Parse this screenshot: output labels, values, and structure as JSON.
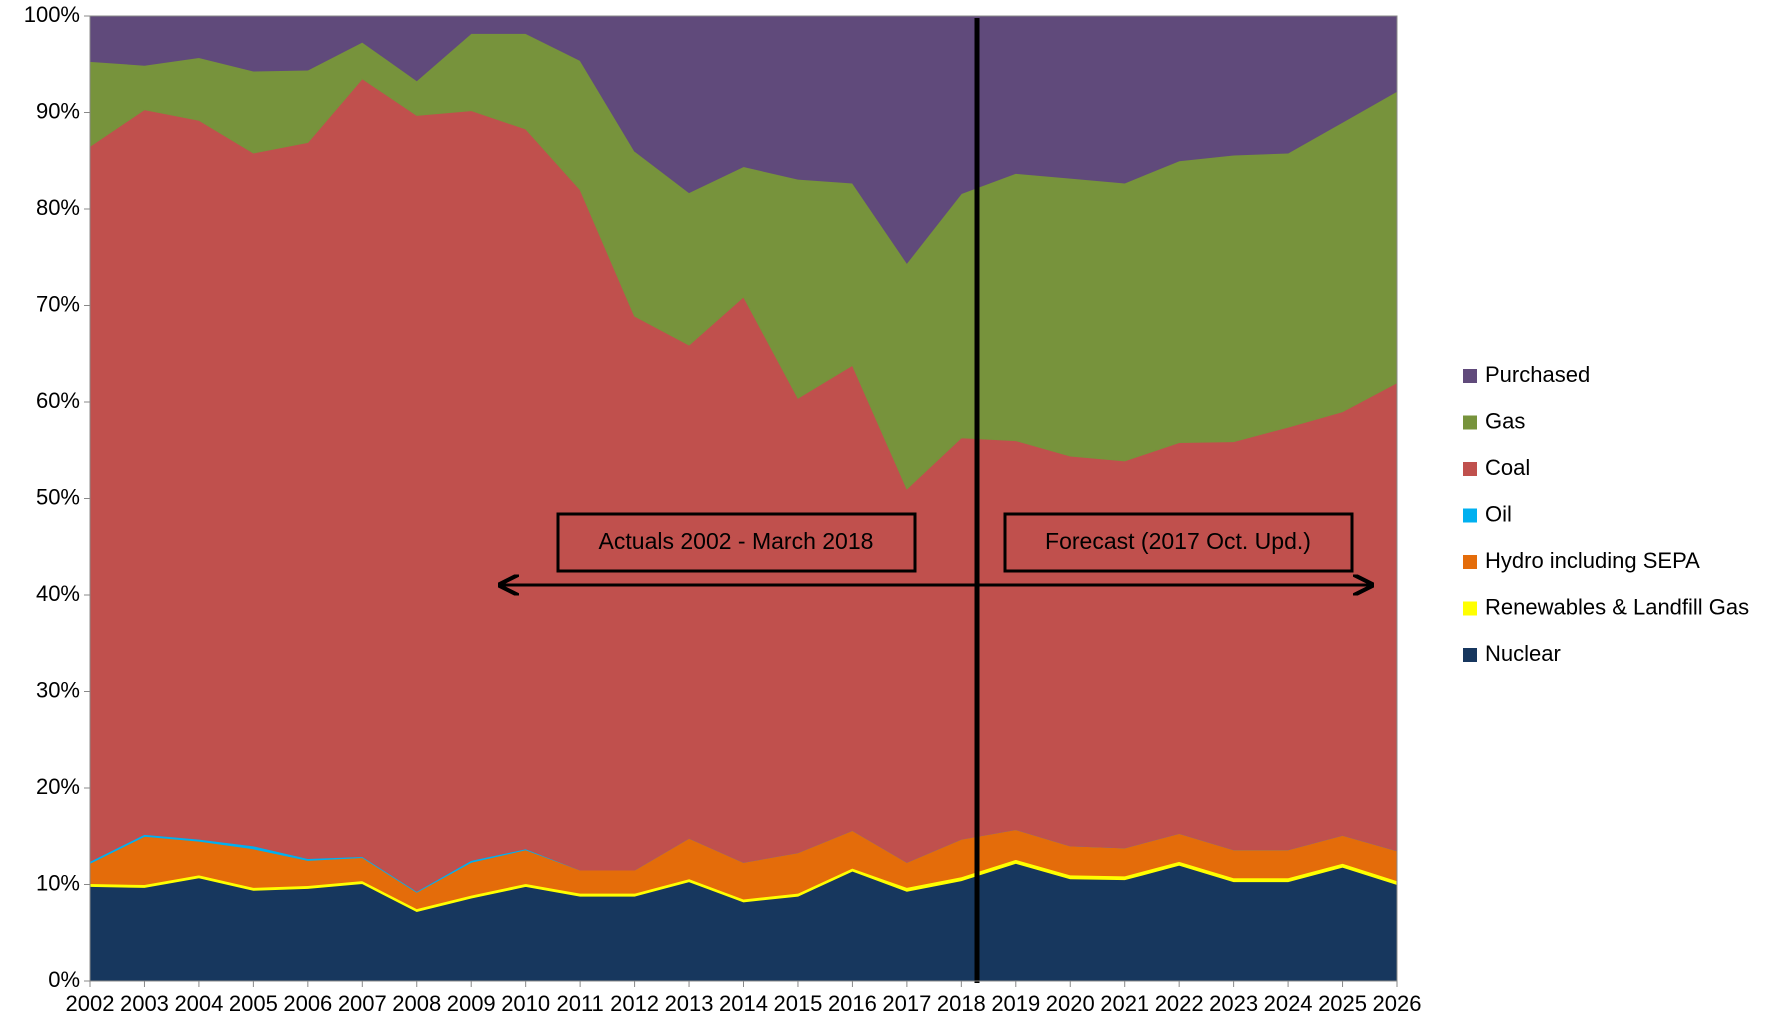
{
  "chart_data": {
    "type": "stacked_area",
    "categories": [
      "2002",
      "2003",
      "2004",
      "2005",
      "2006",
      "2007",
      "2008",
      "2009",
      "2010",
      "2011",
      "2012",
      "2013",
      "2014",
      "2015",
      "2016",
      "2017",
      "2018",
      "2019",
      "2020",
      "2021",
      "2022",
      "2023",
      "2024",
      "2025",
      "2026"
    ],
    "series": [
      {
        "name": "Nuclear",
        "color": "#17375e",
        "values": [
          9.8,
          9.7,
          10.7,
          9.4,
          9.6,
          10.1,
          7.2,
          8.6,
          9.8,
          8.8,
          8.8,
          10.3,
          8.2,
          8.8,
          11.4,
          9.3,
          10.4,
          12.2,
          10.6,
          10.5,
          12.0,
          10.3,
          10.3,
          11.8,
          10.0
        ]
      },
      {
        "name": "Renewables & Landfill Gas",
        "color": "#ffff00",
        "values": [
          0.3,
          0.3,
          0.3,
          0.3,
          0.3,
          0.3,
          0.3,
          0.3,
          0.3,
          0.3,
          0.3,
          0.3,
          0.3,
          0.3,
          0.3,
          0.4,
          0.4,
          0.4,
          0.4,
          0.4,
          0.4,
          0.4,
          0.4,
          0.4,
          0.4
        ]
      },
      {
        "name": "Hydro including SEPA",
        "color": "#e46c0a",
        "values": [
          2.1,
          5.0,
          3.5,
          4.0,
          2.6,
          2.4,
          1.7,
          3.4,
          3.5,
          2.4,
          2.4,
          4.2,
          3.8,
          4.2,
          3.9,
          2.6,
          3.9,
          3.1,
          3.0,
          2.9,
          2.9,
          2.9,
          2.9,
          2.9,
          3.1
        ]
      },
      {
        "name": "Oil",
        "color": "#00b0f0",
        "values": [
          0.2,
          0.2,
          0.2,
          0.3,
          0.2,
          0.1,
          0.1,
          0.2,
          0.1,
          0,
          0,
          0,
          0,
          0,
          0,
          0,
          0,
          0,
          0,
          0,
          0,
          0,
          0,
          0,
          0
        ]
      },
      {
        "name": "Coal",
        "color": "#c0504d",
        "values": [
          74.1,
          75.1,
          74.5,
          71.8,
          74.2,
          80.6,
          80.4,
          77.7,
          74.6,
          70.5,
          57.4,
          51.1,
          58.6,
          47.1,
          48.2,
          38.7,
          41.6,
          40.3,
          40.4,
          40.1,
          40.5,
          42.3,
          43.8,
          43.9,
          48.5
        ]
      },
      {
        "name": "Gas",
        "color": "#77933c",
        "values": [
          8.8,
          4.6,
          6.5,
          8.5,
          7.5,
          3.8,
          3.6,
          8.0,
          9.9,
          13.4,
          17.1,
          15.8,
          13.5,
          22.7,
          18.9,
          23.4,
          25.3,
          27.7,
          28.8,
          28.8,
          29.2,
          29.7,
          28.4,
          30.0,
          30.2
        ]
      },
      {
        "name": "Purchased",
        "color": "#604a7b",
        "values": [
          4.7,
          5.1,
          4.3,
          5.7,
          5.6,
          2.7,
          6.7,
          1.8,
          1.8,
          4.6,
          14.0,
          18.3,
          15.6,
          16.9,
          17.3,
          25.6,
          18.4,
          16.3,
          16.8,
          17.3,
          15.0,
          14.4,
          14.2,
          11.0,
          7.8
        ]
      }
    ],
    "ylim": [
      0,
      100
    ],
    "yticks": [
      {
        "value": 0,
        "label": "0%"
      },
      {
        "value": 10,
        "label": "10%"
      },
      {
        "value": 20,
        "label": "20%"
      },
      {
        "value": 30,
        "label": "30%"
      },
      {
        "value": 40,
        "label": "40%"
      },
      {
        "value": 50,
        "label": "50%"
      },
      {
        "value": 60,
        "label": "60%"
      },
      {
        "value": 70,
        "label": "70%"
      },
      {
        "value": 80,
        "label": "80%"
      },
      {
        "value": 90,
        "label": "90%"
      },
      {
        "value": 100,
        "label": "100%"
      }
    ],
    "annotations": [
      "Actuals 2002 - March 2018",
      "Forecast (2017 Oct. Upd.)"
    ],
    "legend": "right"
  }
}
